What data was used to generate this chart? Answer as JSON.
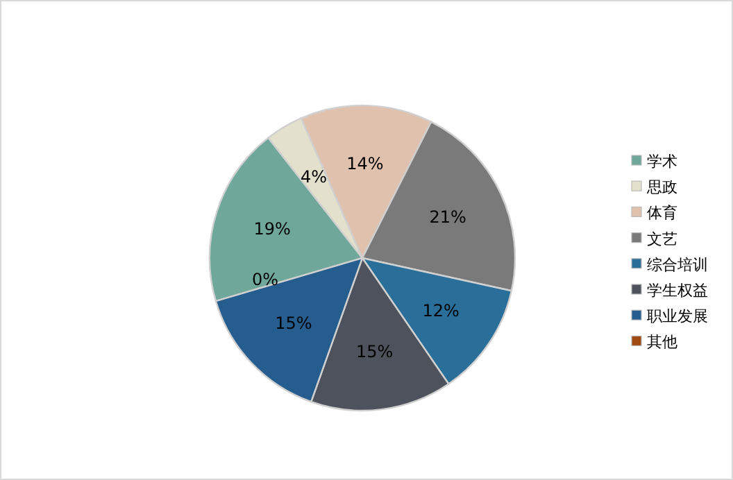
{
  "chart_data": {
    "type": "pie",
    "categories": [
      "学术",
      "思政",
      "体育",
      "文艺",
      "综合培训",
      "学生权益",
      "职业发展",
      "其他"
    ],
    "values": [
      19,
      4,
      14,
      21,
      12,
      15,
      15,
      0
    ],
    "colors": [
      "#6fa89a",
      "#e3e1cc",
      "#dfc1ad",
      "#7a7a7a",
      "#2a6f9a",
      "#4e525c",
      "#245d8e",
      "#a04a10"
    ],
    "value_labels": [
      "19%",
      "4%",
      "14%",
      "21%",
      "12%",
      "15%",
      "15%",
      "0%"
    ],
    "legend": "right"
  }
}
